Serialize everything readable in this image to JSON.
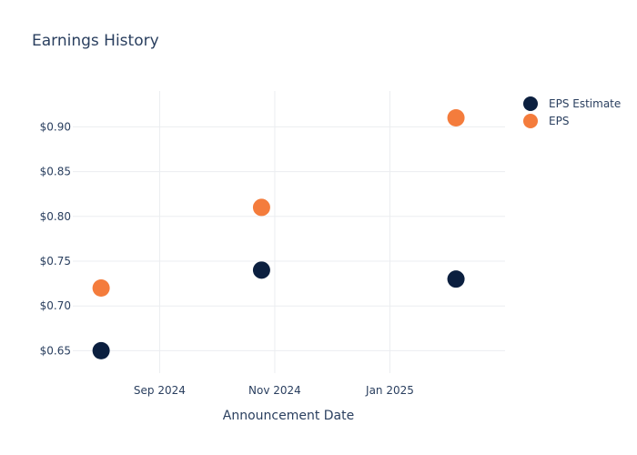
{
  "chart_data": {
    "type": "scatter",
    "title": "Earnings History",
    "xlabel": "Announcement Date",
    "ylabel": "",
    "x_axis_type": "date",
    "xlim": [
      "2024-07-17",
      "2025-03-03"
    ],
    "ylim": [
      0.625,
      0.94
    ],
    "x_ticks": [
      {
        "date": "2024-09-01",
        "label": "Sep 2024"
      },
      {
        "date": "2024-11-01",
        "label": "Nov 2024"
      },
      {
        "date": "2025-01-01",
        "label": "Jan 2025"
      }
    ],
    "y_ticks": [
      {
        "value": 0.65,
        "label": "$0.65"
      },
      {
        "value": 0.7,
        "label": "$0.70"
      },
      {
        "value": 0.75,
        "label": "$0.75"
      },
      {
        "value": 0.8,
        "label": "$0.80"
      },
      {
        "value": 0.85,
        "label": "$0.85"
      },
      {
        "value": 0.9,
        "label": "$0.90"
      }
    ],
    "grid": true,
    "legend_position": "top-right",
    "series": [
      {
        "name": "EPS Estimate",
        "color": "#0b1f3f",
        "points": [
          {
            "x": "2024-08-01",
            "y": 0.65
          },
          {
            "x": "2024-10-25",
            "y": 0.74
          },
          {
            "x": "2025-02-05",
            "y": 0.73
          }
        ]
      },
      {
        "name": "EPS",
        "color": "#f47c3c",
        "points": [
          {
            "x": "2024-08-01",
            "y": 0.72
          },
          {
            "x": "2024-10-25",
            "y": 0.81
          },
          {
            "x": "2025-02-05",
            "y": 0.91
          }
        ]
      }
    ]
  }
}
